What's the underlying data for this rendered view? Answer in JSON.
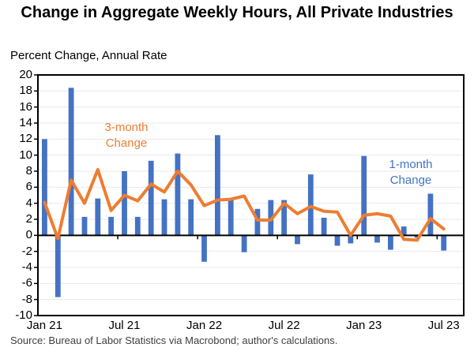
{
  "title": "Change in Aggregate Weekly Hours, All Private Industries",
  "y_axis_title": "Percent Change, Annual Rate",
  "source_note": "Source: Bureau of Labor Statistics via Macrobond; author's calculations.",
  "annotations": {
    "three_month_label": "3-month Change",
    "one_month_label": "1-month Change"
  },
  "colors": {
    "bar_blue": "#4472C4",
    "line_orange": "#ED7D31",
    "gridline": "#EAEAEA",
    "axis_black": "#000000",
    "source_text": "#3f3f3f"
  },
  "chart_data": {
    "type": "bar",
    "title": "Change in Aggregate Weekly Hours, All Private Industries",
    "ylabel": "Percent Change, Annual Rate",
    "ylim": [
      -10,
      20
    ],
    "ytick_step": 2,
    "grid": "horizontal",
    "categories": [
      "Jan 21",
      "Feb 21",
      "Mar 21",
      "Apr 21",
      "May 21",
      "Jun 21",
      "Jul 21",
      "Aug 21",
      "Sep 21",
      "Oct 21",
      "Nov 21",
      "Dec 21",
      "Jan 22",
      "Feb 22",
      "Mar 22",
      "Apr 22",
      "May 22",
      "Jun 22",
      "Jul 22",
      "Aug 22",
      "Sep 22",
      "Oct 22",
      "Nov 22",
      "Dec 22",
      "Jan 23",
      "Feb 23",
      "Mar 23",
      "Apr 23",
      "May 23",
      "Jun 23",
      "Jul 23"
    ],
    "xtick_labels": [
      "Jan 21",
      "Jul 21",
      "Jan 22",
      "Jul 22",
      "Jan 23",
      "Jul 23"
    ],
    "xtick_indices": [
      0,
      6,
      12,
      18,
      24,
      30
    ],
    "series": [
      {
        "name": "1-month Change",
        "type": "bar",
        "color": "#4472C4",
        "values": [
          12.0,
          -7.7,
          18.4,
          2.3,
          4.6,
          2.3,
          8.0,
          2.3,
          9.3,
          4.5,
          10.2,
          4.5,
          -3.3,
          12.5,
          4.4,
          -2.1,
          3.3,
          4.4,
          4.4,
          -1.1,
          7.6,
          2.2,
          -1.3,
          -1.0,
          9.9,
          -0.9,
          -1.8,
          1.1,
          -0.3,
          5.2,
          -1.9
        ]
      },
      {
        "name": "3-month Change",
        "type": "line",
        "color": "#ED7D31",
        "values": [
          4.1,
          -0.4,
          6.9,
          4.0,
          8.2,
          3.1,
          5.0,
          4.3,
          6.4,
          5.4,
          8.0,
          6.3,
          3.7,
          4.4,
          4.5,
          4.9,
          1.9,
          1.9,
          4.0,
          2.7,
          3.6,
          3.0,
          2.9,
          0.0,
          2.5,
          2.7,
          2.4,
          -0.5,
          -0.6,
          2.1,
          0.8
        ]
      }
    ]
  }
}
